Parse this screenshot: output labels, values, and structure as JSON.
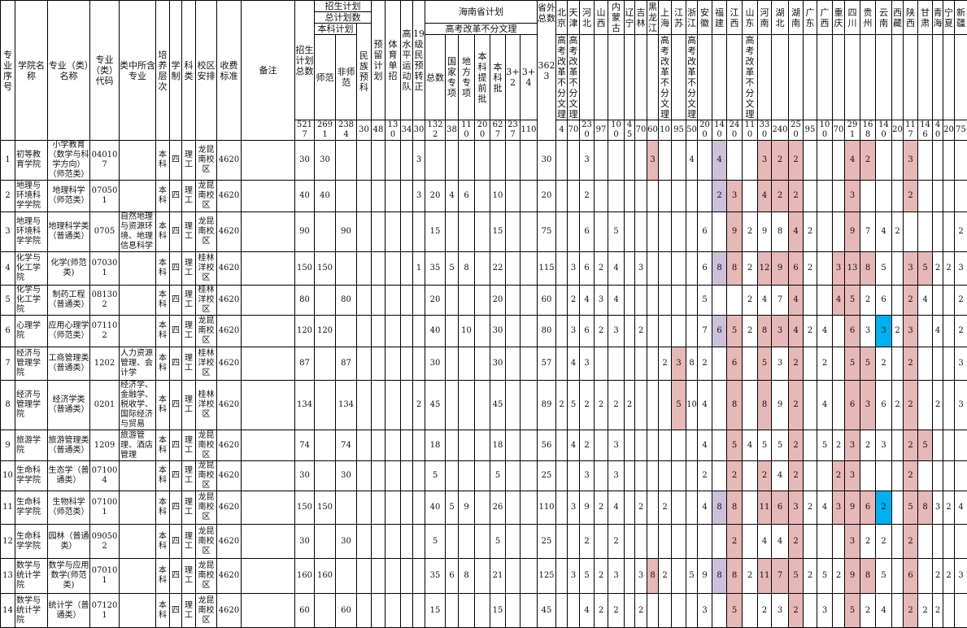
{
  "colors": {
    "pink": "#e6b8b7",
    "purple": "#ccc0da",
    "blue": "#00b0f0"
  },
  "header": {
    "left": [
      "专业序号",
      "学院名称",
      "专业（类）名称",
      "专业（类）代码",
      "类中所含专业",
      "培养层次",
      "学制",
      "科类",
      "校区安排",
      "收费标准",
      "备注"
    ],
    "total_label": "招生计划总数",
    "plan_label": "招生计划",
    "total_plan_label": "总计划数",
    "bk_label": "本科计划",
    "sf": "师范",
    "fsf": "非师范",
    "mz": "民族预科",
    "yl": "预留计划",
    "ty": "体育单招",
    "gsp": "高水平运动队",
    "yz": "19级民预转正",
    "hn_label": "海南省计划",
    "reform_label": "高考改革不分文理",
    "hn_cols": [
      "总数",
      "国家专项",
      "地方专项",
      "本科提前批",
      "本科批",
      "3+2",
      "3+4"
    ],
    "out_label": "省外总数",
    "out_total": "3623",
    "provinces": [
      "北京",
      "天津",
      "河北",
      "山西",
      "内蒙古",
      "辽宁",
      "吉林",
      "黑龙江",
      "上海",
      "江苏",
      "浙江",
      "安徽",
      "福建",
      "江西",
      "山东",
      "河南",
      "湖北",
      "湖南",
      "广东",
      "广西",
      "重庆",
      "四川",
      "贵州",
      "云南",
      "西藏",
      "陕西",
      "甘肃",
      "青海",
      "宁夏",
      "新疆"
    ],
    "province_notes": {
      "0": "高考改革不分文理",
      "1": "高考改革不分文理",
      "8": "高考改革不分文理",
      "10": "高考改革不分文理",
      "14": "高考改革不分文理"
    },
    "totals": [
      "5217",
      "2691",
      "2384",
      "30",
      "48",
      "130",
      "34",
      "30",
      "1322",
      "38",
      "110",
      "200",
      "627",
      "237",
      "110"
    ],
    "province_totals": [
      "4",
      "70",
      "230",
      "97",
      "100",
      "45",
      "70",
      "60",
      "10",
      "95",
      "50",
      "200",
      "140",
      "240",
      "110",
      "330",
      "240",
      "250",
      "95",
      "100",
      "70",
      "291",
      "168",
      "140",
      "20",
      "117",
      "146",
      "40",
      "20",
      "75"
    ]
  },
  "rows": [
    {
      "info": [
        "1",
        "初等教育学院",
        "小学教育（数学与科学方向）（师范类）",
        "040107",
        "",
        "本科",
        "四",
        "理工",
        "龙昆南校区",
        "4620",
        ""
      ],
      "plan": [
        "30",
        "30",
        "",
        "",
        "",
        "",
        "",
        "3",
        "",
        "",
        "",
        "",
        "",
        "",
        "",
        "30"
      ],
      "prov": [
        "",
        "",
        "3",
        "",
        "",
        "",
        "",
        "3",
        "",
        "",
        "4",
        "",
        "4",
        "",
        "",
        "3",
        "2",
        "2",
        "",
        "",
        "",
        "4",
        "2",
        "",
        "",
        "3",
        "",
        "",
        "",
        ""
      ],
      "hl": {
        "7": "pink",
        "12": "purple",
        "15": "pink",
        "16": "pink",
        "17": "pink",
        "21": "pink",
        "22": "pink",
        "25": "pink"
      }
    },
    {
      "info": [
        "2",
        "地理与环境科学学院",
        "地理科学（师范类）",
        "070501",
        "",
        "本科",
        "四",
        "理工",
        "龙昆南校区",
        "4620",
        ""
      ],
      "plan": [
        "40",
        "40",
        "",
        "",
        "",
        "",
        "",
        "3",
        "20",
        "4",
        "6",
        "",
        "10",
        "",
        "",
        "20"
      ],
      "prov": [
        "",
        "",
        "2",
        "",
        "",
        "",
        "",
        "",
        "",
        "",
        "",
        "",
        "2",
        "3",
        "",
        "4",
        "2",
        "2",
        "",
        "",
        "",
        "3",
        "",
        "",
        "",
        "2",
        "",
        "",
        "",
        ""
      ],
      "hl": {
        "12": "purple",
        "13": "pink",
        "15": "pink",
        "16": "pink",
        "17": "pink",
        "21": "pink",
        "25": "pink"
      }
    },
    {
      "info": [
        "3",
        "地理与环境科学学院",
        "地理科学类（普通类）",
        "0705",
        "自然地理与资源环境、地理信息科学",
        "本科",
        "四",
        "理工",
        "龙昆南校区",
        "4620",
        ""
      ],
      "plan": [
        "90",
        "",
        "90",
        "",
        "",
        "",
        "",
        "",
        "15",
        "",
        "",
        "",
        "15",
        "",
        "",
        "75"
      ],
      "prov": [
        "",
        "",
        "6",
        "",
        "5",
        "",
        "",
        "",
        "",
        "",
        "",
        "6",
        "",
        "9",
        "2",
        "9",
        "8",
        "4",
        "2",
        "",
        "",
        "9",
        "7",
        "4",
        "2",
        "",
        "",
        "",
        "",
        "2"
      ],
      "hl": {
        "13": "pink",
        "17": "pink",
        "21": "pink"
      }
    },
    {
      "info": [
        "4",
        "化学与化工学院",
        "化学(师范类)",
        "070301",
        "",
        "本科",
        "四",
        "理工",
        "桂林洋校区",
        "4620",
        ""
      ],
      "plan": [
        "150",
        "150",
        "",
        "",
        "",
        "",
        "",
        "1",
        "35",
        "5",
        "8",
        "",
        "22",
        "",
        "",
        "115"
      ],
      "prov": [
        "",
        "3",
        "6",
        "2",
        "4",
        "",
        "3",
        "",
        "",
        "",
        "",
        "6",
        "8",
        "8",
        "2",
        "12",
        "9",
        "6",
        "2",
        "",
        "3",
        "13",
        "8",
        "5",
        "",
        "3",
        "5",
        "2",
        "2",
        "3"
      ],
      "hl": {
        "12": "purple",
        "13": "pink",
        "15": "pink",
        "16": "pink",
        "17": "pink",
        "20": "pink",
        "21": "pink",
        "22": "pink",
        "25": "pink",
        "26": "pink"
      }
    },
    {
      "info": [
        "5",
        "化学与化工学院",
        "制药工程（普通类）",
        "081302",
        "",
        "本科",
        "四",
        "理工",
        "桂林洋校区",
        "4620",
        ""
      ],
      "plan": [
        "80",
        "",
        "80",
        "",
        "",
        "",
        "",
        "",
        "20",
        "",
        "",
        "",
        "20",
        "",
        "",
        "60"
      ],
      "prov": [
        "",
        "2",
        "4",
        "3",
        "4",
        "",
        "",
        "",
        "",
        "",
        "",
        "5",
        "",
        "",
        "2",
        "4",
        "7",
        "4",
        "",
        "",
        "4",
        "5",
        "2",
        "6",
        "",
        "2",
        "4",
        "",
        "",
        "2"
      ],
      "hl": {
        "17": "pink",
        "20": "pink",
        "21": "pink",
        "25": "pink"
      }
    },
    {
      "info": [
        "6",
        "心理学院",
        "应用心理学（师范类）",
        "071102",
        "",
        "本科",
        "四",
        "理工",
        "龙昆南校区",
        "4620",
        ""
      ],
      "plan": [
        "120",
        "120",
        "",
        "",
        "",
        "",
        "",
        "",
        "40",
        "",
        "10",
        "",
        "30",
        "",
        "",
        "80"
      ],
      "prov": [
        "",
        "3",
        "6",
        "2",
        "3",
        "",
        "2",
        "",
        "",
        "",
        "",
        "7",
        "6",
        "5",
        "2",
        "8",
        "3",
        "4",
        "2",
        "4",
        "",
        "6",
        "3",
        "3",
        "2",
        "3",
        "",
        "4",
        "",
        "2"
      ],
      "hl": {
        "12": "purple",
        "13": "pink",
        "15": "pink",
        "16": "pink",
        "17": "pink",
        "21": "pink",
        "23": "blue",
        "25": "pink"
      }
    },
    {
      "info": [
        "7",
        "经济与管理学院",
        "工商管理类（普通类）",
        "1202",
        "人力资源管理、会计学",
        "本科",
        "四",
        "理工",
        "桂林洋校区",
        "4620",
        ""
      ],
      "plan": [
        "87",
        "",
        "87",
        "",
        "",
        "",
        "",
        "",
        "30",
        "",
        "",
        "",
        "30",
        "",
        "",
        "57"
      ],
      "prov": [
        "",
        "4",
        "3",
        "",
        "",
        "",
        "",
        "",
        "2",
        "3",
        "8",
        "2",
        "",
        "6",
        "",
        "5",
        "3",
        "2",
        "",
        "2",
        "",
        "5",
        "5",
        "2",
        "",
        "2",
        "",
        "",
        "",
        "3"
      ],
      "hl": {
        "9": "pink",
        "13": "pink",
        "15": "pink",
        "17": "pink",
        "21": "pink",
        "22": "pink",
        "25": "pink"
      }
    },
    {
      "info": [
        "8",
        "经济与管理学院",
        "经济学类（普通类）",
        "0201",
        "经济学、金融学、税收学、国际经济与贸易",
        "本科",
        "四",
        "理工",
        "桂林洋校区",
        "4620",
        ""
      ],
      "plan": [
        "134",
        "",
        "134",
        "",
        "",
        "",
        "",
        "2",
        "45",
        "",
        "",
        "",
        "45",
        "",
        "",
        "89"
      ],
      "prov": [
        "2",
        "5",
        "2",
        "2",
        "2",
        "2",
        "",
        "",
        "",
        "5",
        "10",
        "4",
        "",
        "8",
        "",
        "8",
        "9",
        "2",
        "",
        "4",
        "",
        "6",
        "3",
        "6",
        "2",
        "2",
        "",
        "2",
        "",
        "3"
      ],
      "hl": {
        "9": "pink",
        "13": "pink",
        "15": "pink",
        "17": "pink",
        "21": "pink",
        "22": "pink",
        "25": "pink"
      }
    },
    {
      "info": [
        "9",
        "旅游学院",
        "旅游管理类（普通类）",
        "1209",
        "旅游管理、酒店管理",
        "本科",
        "四",
        "理工",
        "龙昆南校区",
        "4620",
        ""
      ],
      "plan": [
        "74",
        "",
        "74",
        "",
        "",
        "",
        "",
        "",
        "18",
        "",
        "",
        "",
        "18",
        "",
        "",
        "56"
      ],
      "prov": [
        "",
        "4",
        "2",
        "",
        "3",
        "",
        "",
        "",
        "",
        "",
        "",
        "4",
        "",
        "5",
        "4",
        "5",
        "5",
        "2",
        "",
        "5",
        "2",
        "3",
        "2",
        "3",
        "",
        "2",
        "5",
        "",
        "",
        ""
      ],
      "hl": {
        "13": "pink",
        "17": "pink",
        "21": "pink",
        "25": "pink",
        "26": "pink"
      }
    },
    {
      "info": [
        "10",
        "生命科学学院",
        "生态学（普通类）",
        "071004",
        "",
        "本科",
        "四",
        "理工",
        "龙昆南校区",
        "4620",
        ""
      ],
      "plan": [
        "30",
        "",
        "30",
        "",
        "",
        "",
        "",
        "",
        "5",
        "",
        "",
        "",
        "5",
        "",
        "",
        "25"
      ],
      "prov": [
        "",
        "",
        "3",
        "",
        "3",
        "",
        "",
        "",
        "",
        "",
        "",
        "2",
        "",
        "2",
        "",
        "2",
        "4",
        "2",
        "",
        "",
        "2",
        "3",
        "",
        "",
        "",
        "2",
        "",
        "",
        "",
        ""
      ],
      "hl": {
        "13": "pink",
        "15": "pink",
        "17": "pink",
        "20": "pink",
        "21": "pink",
        "25": "pink"
      }
    },
    {
      "info": [
        "11",
        "生命科学学院",
        "生物科学（师范类）",
        "071001",
        "",
        "本科",
        "四",
        "理工",
        "龙昆南校区",
        "4620",
        ""
      ],
      "plan": [
        "150",
        "150",
        "",
        "",
        "",
        "",
        "",
        "",
        "40",
        "5",
        "9",
        "",
        "26",
        "",
        "",
        "110"
      ],
      "prov": [
        "",
        "3",
        "9",
        "2",
        "4",
        "",
        "2",
        "",
        "2",
        "",
        "",
        "4",
        "8",
        "8",
        "",
        "11",
        "6",
        "3",
        "2",
        "4",
        "3",
        "9",
        "6",
        "2",
        "",
        "5",
        "8",
        "3",
        "2",
        "4"
      ],
      "hl": {
        "12": "purple",
        "13": "pink",
        "15": "pink",
        "16": "pink",
        "17": "pink",
        "20": "pink",
        "21": "pink",
        "22": "pink",
        "23": "blue",
        "25": "pink",
        "26": "pink"
      }
    },
    {
      "info": [
        "12",
        "生命科学学院",
        "园林（普通类）",
        "090502",
        "",
        "本科",
        "四",
        "理工",
        "龙昆南校区",
        "4620",
        ""
      ],
      "plan": [
        "30",
        "",
        "30",
        "",
        "",
        "",
        "",
        "",
        "5",
        "",
        "",
        "",
        "5",
        "",
        "",
        "25"
      ],
      "prov": [
        "",
        "",
        "2",
        "",
        "2",
        "",
        "",
        "",
        "",
        "",
        "",
        "",
        "",
        "2",
        "",
        "4",
        "4",
        "2",
        "",
        "",
        "",
        "3",
        "2",
        "2",
        "",
        "2",
        "",
        "",
        "",
        ""
      ],
      "hl": {
        "13": "pink",
        "17": "pink",
        "21": "pink",
        "25": "pink"
      }
    },
    {
      "info": [
        "13",
        "数学与统计学院",
        "数学与应用数学(师范类)",
        "070101",
        "",
        "本科",
        "四",
        "理工",
        "龙昆南校区",
        "4620",
        ""
      ],
      "plan": [
        "160",
        "160",
        "",
        "",
        "",
        "",
        "",
        "",
        "35",
        "6",
        "8",
        "",
        "21",
        "",
        "",
        "125"
      ],
      "prov": [
        "",
        "3",
        "5",
        "2",
        "3",
        "",
        "3",
        "8",
        "2",
        "",
        "5",
        "9",
        "8",
        "8",
        "2",
        "11",
        "7",
        "5",
        "2",
        "5",
        "2",
        "9",
        "8",
        "5",
        "",
        "6",
        "",
        "2",
        "2",
        "3"
      ],
      "hl": {
        "7": "pink",
        "12": "purple",
        "13": "pink",
        "15": "pink",
        "16": "pink",
        "17": "pink",
        "21": "pink",
        "22": "pink",
        "25": "pink"
      }
    },
    {
      "info": [
        "14",
        "数学与统计学院",
        "统计学（普通类）",
        "071201",
        "",
        "本科",
        "四",
        "理工",
        "龙昆南校区",
        "4620",
        ""
      ],
      "plan": [
        "60",
        "",
        "60",
        "",
        "",
        "",
        "",
        "",
        "15",
        "",
        "",
        "",
        "15",
        "",
        "",
        "45"
      ],
      "prov": [
        "",
        "",
        "4",
        "2",
        "2",
        "",
        "2",
        "",
        "",
        "",
        "",
        "3",
        "",
        "5",
        "",
        "2",
        "3",
        "2",
        "",
        "3",
        "",
        "5",
        "2",
        "4",
        "",
        "2",
        "2",
        "2",
        "",
        ""
      ],
      "hl": {
        "13": "pink",
        "17": "pink",
        "21": "pink",
        "25": "pink"
      }
    }
  ]
}
